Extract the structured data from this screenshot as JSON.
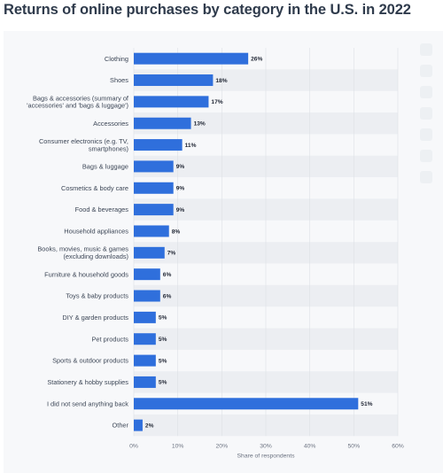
{
  "title": "Returns of online purchases by category in the U.S. in 2022",
  "chart_data": {
    "type": "bar",
    "orientation": "horizontal",
    "categories": [
      "Clothing",
      "Shoes",
      "Bags & accessories (summary of\n'accessories' and 'bags & luggage')",
      "Accessories",
      "Consumer electronics (e.g. TV,\nsmartphones)",
      "Bags & luggage",
      "Cosmetics & body care",
      "Food & beverages",
      "Household appliances",
      "Books, movies, music & games\n(excluding downloads)",
      "Furniture & household goods",
      "Toys & baby products",
      "DIY & garden products",
      "Pet products",
      "Sports & outdoor products",
      "Stationery & hobby supplies",
      "I did not send anything back",
      "Other"
    ],
    "values": [
      26,
      18,
      17,
      13,
      11,
      9,
      9,
      9,
      8,
      7,
      6,
      6,
      5,
      5,
      5,
      5,
      51,
      2
    ],
    "value_labels": [
      "26%",
      "18%",
      "17%",
      "13%",
      "11%",
      "9%",
      "9%",
      "9%",
      "8%",
      "7%",
      "6%",
      "6%",
      "5%",
      "5%",
      "5%",
      "5%",
      "51%",
      "2%"
    ],
    "xlim": [
      0,
      60
    ],
    "xticks": [
      "0%",
      "10%",
      "20%",
      "30%",
      "40%",
      "50%",
      "60%"
    ],
    "xlabel": "Share of respondents",
    "ylabel": "",
    "grid": true,
    "bar_color": "#2f6fdc",
    "stripe_color": "#eceef2"
  },
  "sidebar": {
    "icons": [
      "bookmark-icon",
      "bell-icon",
      "gear-icon",
      "share-icon",
      "quote-icon",
      "info-icon",
      "print-icon"
    ]
  }
}
